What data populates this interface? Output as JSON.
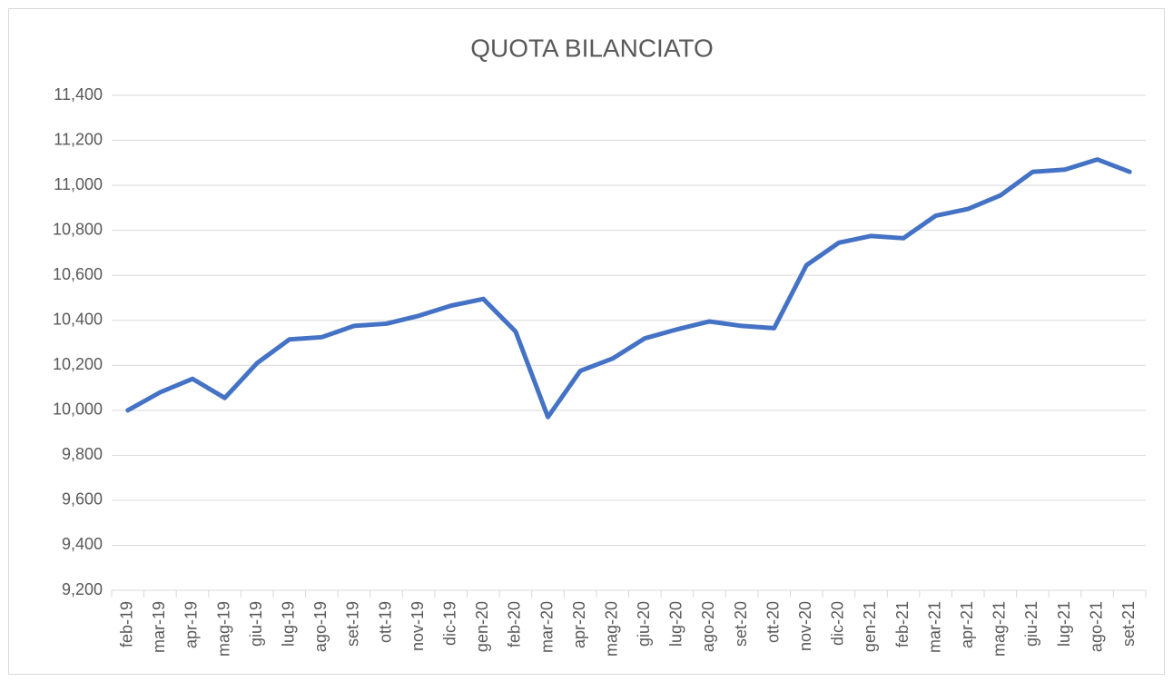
{
  "chart_data": {
    "type": "line",
    "title": "QUOTA BILANCIATO",
    "categories": [
      "feb-19",
      "mar-19",
      "apr-19",
      "mag-19",
      "giu-19",
      "lug-19",
      "ago-19",
      "set-19",
      "ott-19",
      "nov-19",
      "dic-19",
      "gen-20",
      "feb-20",
      "mar-20",
      "apr-20",
      "mag-20",
      "giu-20",
      "lug-20",
      "ago-20",
      "set-20",
      "ott-20",
      "nov-20",
      "dic-20",
      "gen-21",
      "feb-21",
      "mar-21",
      "apr-21",
      "mag-21",
      "giu-21",
      "lug-21",
      "ago-21",
      "set-21"
    ],
    "series": [
      {
        "name": "QUOTA BILANCIATO",
        "color": "#4472c4",
        "values": [
          10000,
          10080,
          10140,
          10055,
          10210,
          10315,
          10325,
          10375,
          10385,
          10420,
          10465,
          10495,
          10350,
          9970,
          10175,
          10230,
          10320,
          10360,
          10395,
          10375,
          10365,
          10645,
          10745,
          10775,
          10765,
          10865,
          10895,
          10955,
          11060,
          11070,
          11115,
          11060
        ]
      }
    ],
    "ylim": [
      9200,
      11400
    ],
    "yticks": [
      {
        "value": 9200,
        "label": "9,200"
      },
      {
        "value": 9400,
        "label": "9,400"
      },
      {
        "value": 9600,
        "label": "9,600"
      },
      {
        "value": 9800,
        "label": "9,800"
      },
      {
        "value": 10000,
        "label": "10,000"
      },
      {
        "value": 10200,
        "label": "10,200"
      },
      {
        "value": 10400,
        "label": "10,400"
      },
      {
        "value": 10600,
        "label": "10,600"
      },
      {
        "value": 10800,
        "label": "10,800"
      },
      {
        "value": 11000,
        "label": "11,000"
      },
      {
        "value": 11200,
        "label": "11,200"
      },
      {
        "value": 11400,
        "label": "11,400"
      }
    ],
    "grid": true
  }
}
